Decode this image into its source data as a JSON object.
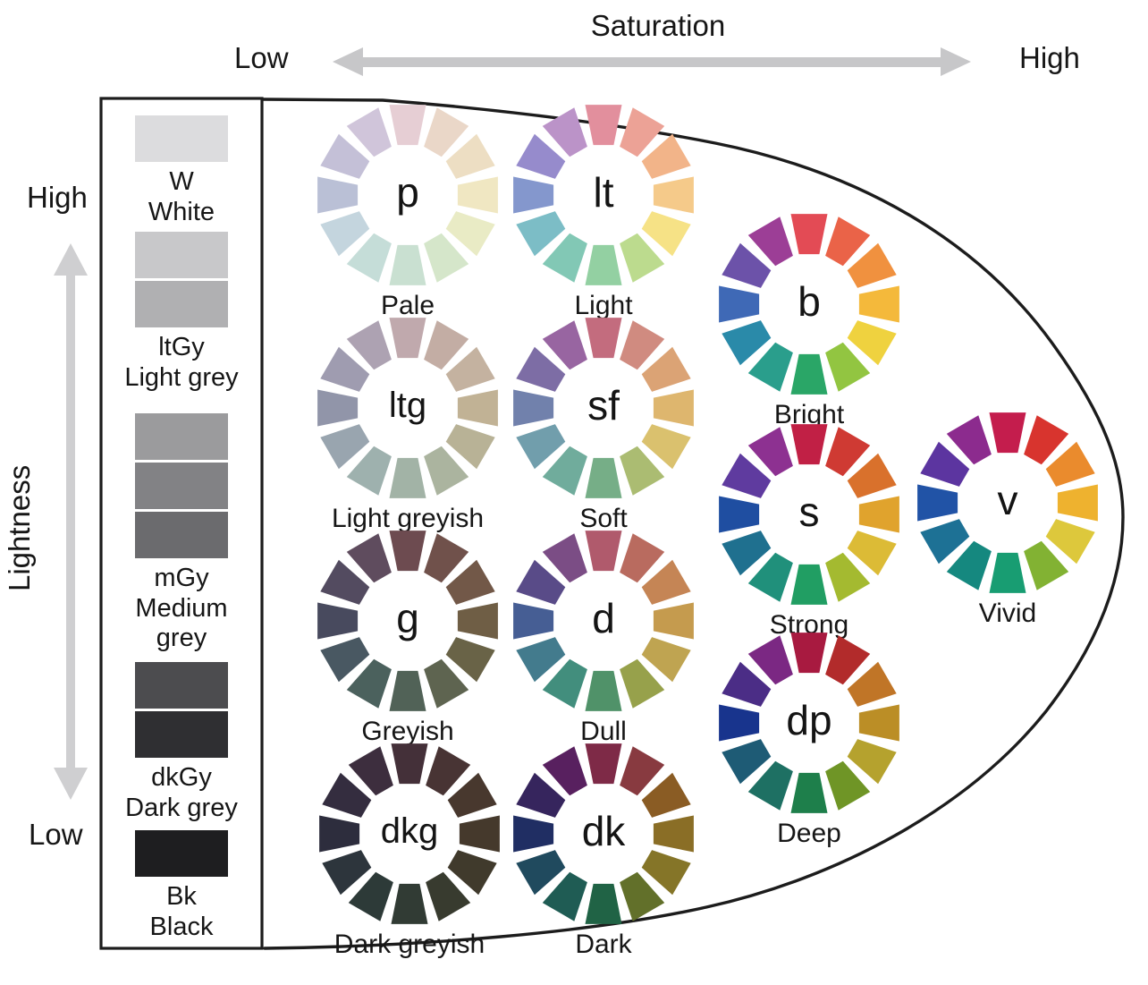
{
  "axes": {
    "saturation": {
      "label": "Saturation",
      "low": "Low",
      "high": "High"
    },
    "lightness": {
      "label": "Lightness",
      "high": "High",
      "low": "Low"
    }
  },
  "greyscale": {
    "groups": [
      {
        "code": "W",
        "name": "White",
        "swatches": [
          "#dcdcde"
        ]
      },
      {
        "code": "ltGy",
        "name": "Light grey",
        "swatches": [
          "#c8c8ca",
          "#b0b0b2"
        ]
      },
      {
        "code": "mGy",
        "name": "Medium grey",
        "swatches": [
          "#9b9b9d",
          "#828285",
          "#6b6b6e"
        ]
      },
      {
        "code": "dkGy",
        "name": "Dark grey",
        "swatches": [
          "#4c4c4f",
          "#2f2f32"
        ]
      },
      {
        "code": "Bk",
        "name": "Black",
        "swatches": [
          "#1e1e20"
        ]
      }
    ]
  },
  "tones": [
    {
      "code": "p",
      "name": "Pale",
      "colors": [
        "#e6ced4",
        "#ead7c8",
        "#eddec3",
        "#f0e7c2",
        "#e9ebc5",
        "#d5e6ca",
        "#c9e0d1",
        "#c5ddd8",
        "#c4d5de",
        "#bac0d6",
        "#c4c0d7",
        "#d0c5da"
      ]
    },
    {
      "code": "lt",
      "name": "Light",
      "colors": [
        "#e28f9d",
        "#eca296",
        "#f2b489",
        "#f5ca8a",
        "#f6e286",
        "#bcdb8e",
        "#93d0a2",
        "#82c8b5",
        "#7cbdc6",
        "#8497cd",
        "#968bcc",
        "#bb93c8"
      ]
    },
    {
      "code": "b",
      "name": "Bright",
      "colors": [
        "#e34b55",
        "#ea6348",
        "#f0913f",
        "#f4b93b",
        "#efd23f",
        "#92c541",
        "#2aa667",
        "#2a9e8c",
        "#2a8aa9",
        "#3f69b6",
        "#6c52a9",
        "#9c3e96"
      ]
    },
    {
      "code": "ltg",
      "name": "Light greyish",
      "colors": [
        "#c0a9ad",
        "#c3ada4",
        "#c4b2a0",
        "#c1b295",
        "#b8b296",
        "#abb49f",
        "#a2b3a6",
        "#9eb1ae",
        "#99a5af",
        "#9195a9",
        "#9f9cb0",
        "#ada2b2"
      ]
    },
    {
      "code": "sf",
      "name": "Soft",
      "colors": [
        "#c36c7e",
        "#d08b80",
        "#dba375",
        "#deb66e",
        "#dac16e",
        "#abbc72",
        "#76ae87",
        "#70ac9c",
        "#719eac",
        "#7181ac",
        "#7d6da5",
        "#9865a1"
      ]
    },
    {
      "code": "s",
      "name": "Strong",
      "colors": [
        "#c12045",
        "#cf3a33",
        "#d9712c",
        "#e0a32d",
        "#dcbb36",
        "#a4ba30",
        "#219e63",
        "#20907b",
        "#1f708f",
        "#1f4ea1",
        "#5f3b9f",
        "#8d3191"
      ]
    },
    {
      "code": "v",
      "name": "Vivid",
      "colors": [
        "#c41d4d",
        "#d8342e",
        "#ea8b2d",
        "#eeb22f",
        "#ddc83c",
        "#82b233",
        "#189d72",
        "#15887f",
        "#1d7195",
        "#2153a6",
        "#5c35a0",
        "#8c2b8e"
      ]
    },
    {
      "code": "g",
      "name": "Greyish",
      "colors": [
        "#6d4b50",
        "#70514b",
        "#725848",
        "#6f5e45",
        "#696347",
        "#5e6450",
        "#516257",
        "#4b615d",
        "#495862",
        "#484a5e",
        "#534b60",
        "#5f4c5e"
      ]
    },
    {
      "code": "d",
      "name": "Dull",
      "colors": [
        "#b05a6c",
        "#b96b5f",
        "#c58555",
        "#c59b4e",
        "#bfa451",
        "#97a14b",
        "#509269",
        "#428e7d",
        "#437b8d",
        "#465e94",
        "#594b88",
        "#7b4d85"
      ]
    },
    {
      "code": "dp",
      "name": "Deep",
      "colors": [
        "#a81a40",
        "#b22b2b",
        "#c07527",
        "#bb8e26",
        "#b5a22e",
        "#6f9526",
        "#1e7f4b",
        "#1e7063",
        "#1e5b75",
        "#18348d",
        "#4b2d86",
        "#7b2883"
      ]
    },
    {
      "code": "dkg",
      "name": "Dark greyish",
      "colors": [
        "#443039",
        "#483434",
        "#48382e",
        "#45392c",
        "#403a2c",
        "#383b2f",
        "#313b34",
        "#2d3a38",
        "#2d353c",
        "#2d2d3d",
        "#342d3f",
        "#3d2e3e"
      ]
    },
    {
      "code": "dk",
      "name": "Dark",
      "colors": [
        "#7e2a47",
        "#883a40",
        "#8a5c24",
        "#8a6e26",
        "#857528",
        "#62702a",
        "#206345",
        "#1f5c54",
        "#204a5e",
        "#202e63",
        "#36255d",
        "#58205f"
      ]
    }
  ],
  "style": {
    "outline_color": "#1c1c1c",
    "arrow_color": "#c7c7c9"
  }
}
